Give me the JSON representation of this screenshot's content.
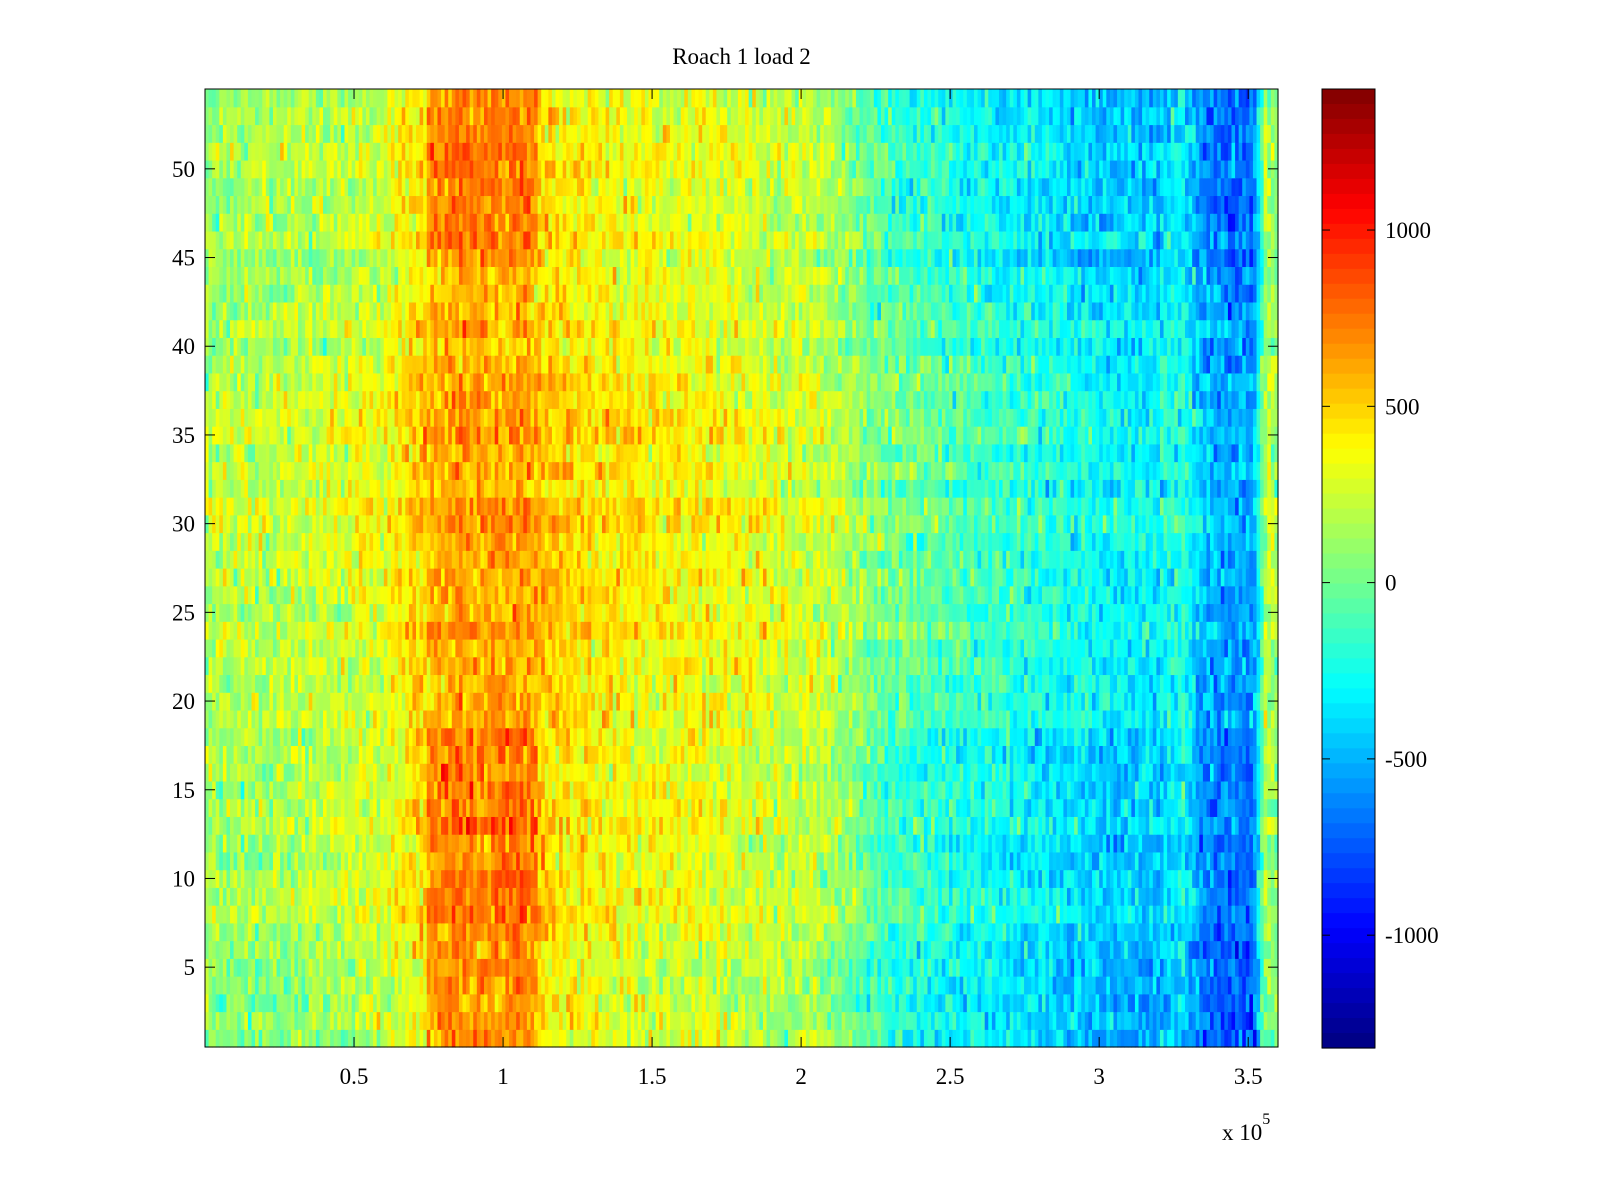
{
  "chart_data": {
    "type": "heatmap",
    "title": "Roach 1 load 2",
    "xlabel": "",
    "ylabel": "",
    "x_exponent_label": {
      "base": "x 10",
      "exponent": "5"
    },
    "xlim": [
      0,
      360000
    ],
    "ylim": [
      0.5,
      54.5
    ],
    "x_ticks": [
      50000,
      100000,
      150000,
      200000,
      250000,
      300000,
      350000
    ],
    "x_tick_labels": [
      "0.5",
      "1",
      "1.5",
      "2",
      "2.5",
      "3",
      "3.5"
    ],
    "y_ticks": [
      5,
      10,
      15,
      20,
      25,
      30,
      35,
      40,
      45,
      50
    ],
    "y_tick_labels": [
      "5",
      "10",
      "15",
      "20",
      "25",
      "30",
      "35",
      "40",
      "45",
      "50"
    ],
    "rows": 54,
    "colorbar": {
      "colormap": "jet",
      "clim": [
        -1320,
        1400
      ],
      "ticks": [
        1000,
        500,
        0,
        -500,
        -1000
      ],
      "tick_labels": [
        "1000",
        "500",
        "0",
        "-500",
        "-1000"
      ]
    },
    "column_profile": {
      "x": [
        0,
        20000,
        40000,
        60000,
        75000,
        85000,
        95000,
        105000,
        115000,
        130000,
        150000,
        170000,
        190000,
        205000,
        215000,
        225000,
        240000,
        260000,
        280000,
        300000,
        320000,
        328000,
        335000,
        345000,
        352000,
        356000,
        360000
      ],
      "mean": [
        100,
        120,
        160,
        240,
        470,
        560,
        480,
        560,
        450,
        360,
        310,
        280,
        200,
        170,
        60,
        -60,
        -120,
        -220,
        -280,
        -380,
        -400,
        -250,
        -560,
        -640,
        -650,
        150,
        50
      ]
    },
    "row_profile": {
      "y": [
        1,
        5,
        10,
        15,
        20,
        25,
        30,
        35,
        40,
        45,
        50,
        54
      ],
      "offset": [
        -40,
        -20,
        40,
        40,
        60,
        80,
        110,
        100,
        40,
        0,
        20,
        -20
      ]
    },
    "edge_hot_rows": [
      1,
      2,
      3,
      4,
      5,
      6,
      7,
      8,
      9,
      10,
      11,
      12,
      13,
      14,
      15,
      16,
      17,
      18,
      45,
      46,
      47,
      48,
      49,
      50,
      51,
      52,
      53,
      54
    ],
    "edge_boost": {
      "x_range": [
        75000,
        112000
      ],
      "value": 180
    },
    "noise_std": 170
  }
}
